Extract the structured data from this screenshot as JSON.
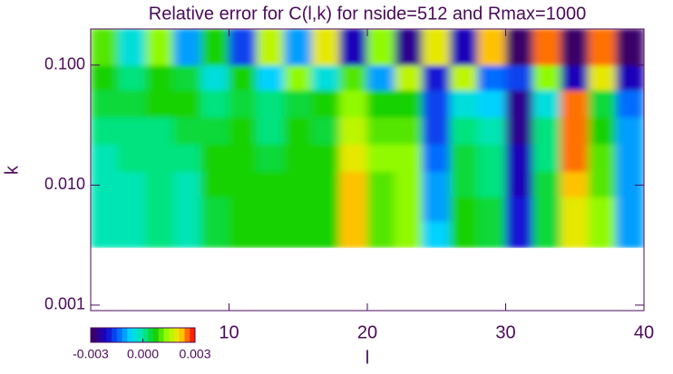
{
  "chart_data": {
    "type": "heatmap",
    "title": "Relative error for C(l,k) for nside=512 and Rmax=1000",
    "x_label": "l",
    "y_label": "k",
    "xlim": [
      0,
      40
    ],
    "xticks": [
      10,
      20,
      30,
      40
    ],
    "ylim": [
      0.0009,
      0.2
    ],
    "y_scale": "log",
    "yticks": [
      0.001,
      {
        "value": 0.01,
        "label": "0.010"
      },
      {
        "value": 0.1,
        "label": "0.100"
      }
    ],
    "xbins": [
      0,
      2,
      4,
      6,
      8,
      10,
      12,
      14,
      16,
      18,
      20,
      22,
      24,
      26,
      28,
      30,
      32,
      34,
      36,
      38,
      40
    ],
    "ybins": [
      0.003,
      0.005,
      0.008,
      0.013,
      0.022,
      0.037,
      0.062,
      0.1,
      0.2
    ],
    "z": [
      [
        -0.0003,
        -0.0002,
        0.0,
        -0.0003,
        0.0005,
        0.0008,
        0.0006,
        0.0009,
        0.0007,
        0.0021,
        0.001,
        0.0012,
        -0.0008,
        0.0006,
        0.0004,
        -0.002,
        0.0005,
        0.0018,
        0.0012,
        -0.001
      ],
      [
        -0.0003,
        -0.0002,
        0.0,
        -0.0002,
        0.0005,
        0.0008,
        0.0006,
        0.0009,
        0.0007,
        0.0022,
        0.001,
        0.0013,
        -0.001,
        0.0006,
        0.0004,
        -0.0021,
        0.0005,
        0.002,
        0.0012,
        -0.001
      ],
      [
        -0.0002,
        -0.0001,
        0.0001,
        -0.0002,
        0.0006,
        0.0008,
        0.0006,
        0.0008,
        0.0007,
        0.0022,
        0.0011,
        0.0014,
        -0.0012,
        0.0005,
        0.0003,
        -0.0022,
        0.0004,
        0.0023,
        0.0011,
        -0.0011
      ],
      [
        -0.0001,
        0.0,
        0.0002,
        0.0,
        0.0006,
        0.0007,
        0.0005,
        0.0008,
        0.0006,
        0.002,
        0.0012,
        0.0013,
        -0.0014,
        0.0004,
        0.0001,
        -0.0023,
        0.0003,
        0.0025,
        0.001,
        -0.0012
      ],
      [
        0.0,
        0.0002,
        0.0003,
        0.0004,
        0.0005,
        0.0007,
        0.0003,
        0.0007,
        0.0005,
        0.0016,
        0.001,
        0.0011,
        -0.0016,
        0.0002,
        -0.0002,
        -0.0025,
        0.0001,
        0.0026,
        0.0008,
        -0.0012
      ],
      [
        0.0004,
        0.0005,
        0.0006,
        0.0007,
        0.0003,
        0.0005,
        0.0001,
        0.0004,
        0.0008,
        0.0012,
        0.0006,
        0.0009,
        -0.0018,
        -0.0004,
        -0.0008,
        -0.0026,
        -0.0006,
        0.0025,
        0.0004,
        -0.0015
      ],
      [
        0.0006,
        0.0002,
        0.0009,
        0.0005,
        -0.0004,
        0.0008,
        -0.0009,
        0.0012,
        -0.0005,
        0.001,
        -0.0012,
        0.0015,
        -0.002,
        0.0016,
        -0.0015,
        -0.0018,
        0.0014,
        -0.0022,
        0.0019,
        -0.0024
      ],
      [
        0.001,
        -0.0006,
        0.0014,
        -0.0012,
        0.0008,
        -0.0018,
        0.0016,
        -0.001,
        0.002,
        -0.0022,
        0.0012,
        -0.0026,
        0.0018,
        -0.0024,
        0.0022,
        -0.0028,
        0.0024,
        -0.0027,
        0.0026,
        -0.0029
      ]
    ],
    "zlim": [
      -0.003,
      0.003
    ],
    "colorbar_ticks": [
      -0.003,
      {
        "value": 0,
        "label": "0.000"
      },
      0.003
    ],
    "colors": [
      "#3a0068",
      "#1a00c8",
      "#0060ff",
      "#00d8ff",
      "#00e8a0",
      "#10d000",
      "#a0ff00",
      "#ffe000",
      "#ff2000"
    ],
    "levels": 20,
    "axis_color": "#4a0a5a"
  }
}
